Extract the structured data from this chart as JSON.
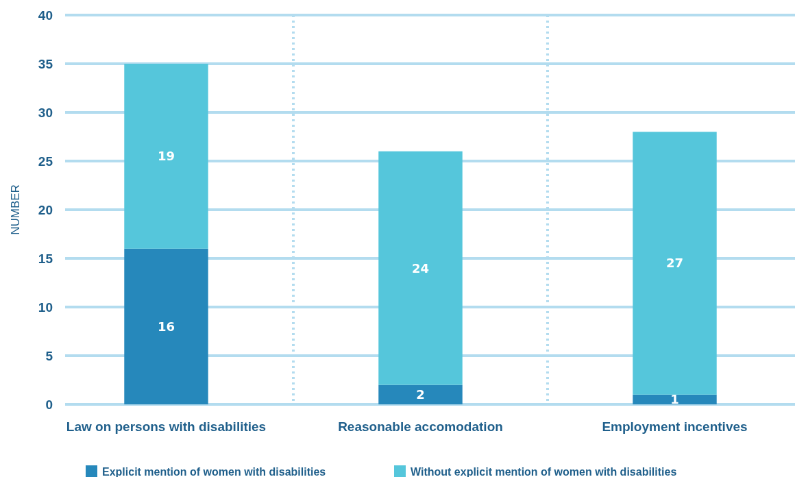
{
  "chart_data": {
    "type": "bar",
    "stacked": true,
    "ylabel": "NUMBER",
    "categories": [
      "Law on persons with disabilities",
      "Reasonable accomodation",
      "Employment incentives"
    ],
    "series": [
      {
        "name": "Explicit mention of women with disabilities",
        "color": "#2688bb",
        "values": [
          16,
          2,
          1
        ]
      },
      {
        "name": "Without explicit mention of women with disabilities",
        "color": "#55c6db",
        "values": [
          19,
          24,
          27
        ]
      }
    ],
    "ylim": [
      0,
      40
    ],
    "yticks": [
      0,
      5,
      10,
      15,
      20,
      25,
      30,
      35,
      40
    ],
    "grid": true,
    "data_labels": true,
    "legend": "bottom"
  }
}
